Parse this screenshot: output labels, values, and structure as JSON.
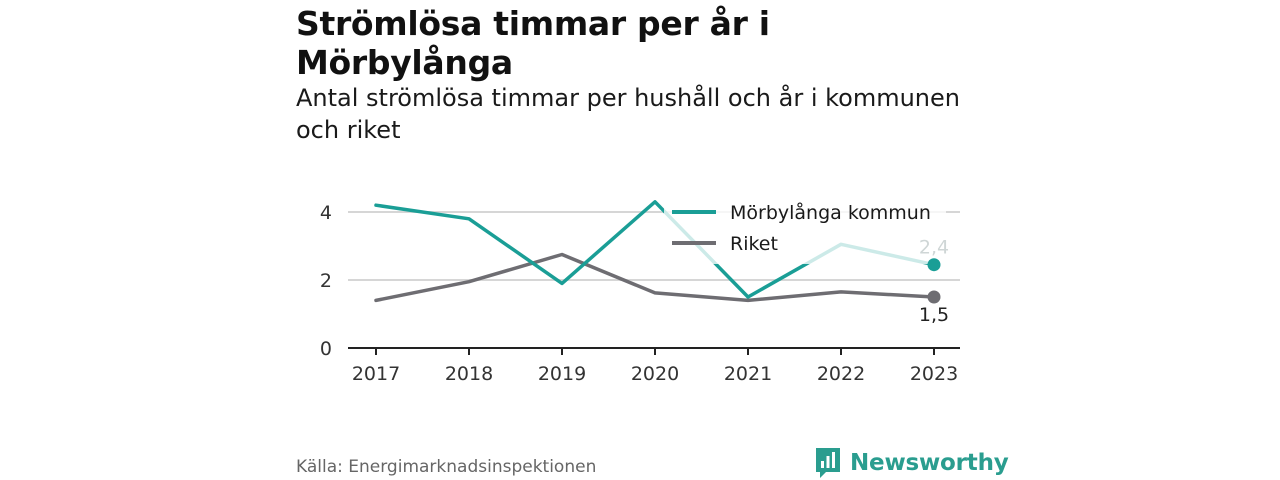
{
  "title": "Strömlösa timmar per år i Mörbylånga",
  "subtitle": "Antal strömlösa timmar per hushåll och år i kommunen och riket",
  "source": "Källa: Energimarknadsinspektionen",
  "brand": {
    "name": "Newsworthy",
    "icon": "bar-chart-logo-icon",
    "color": "#2a9d8f"
  },
  "chart_data": {
    "type": "line",
    "x": [
      "2017",
      "2018",
      "2019",
      "2020",
      "2021",
      "2022",
      "2023"
    ],
    "yticks": [
      "0",
      "2",
      "4"
    ],
    "ylim": [
      0,
      4.8
    ],
    "grid": true,
    "legend_position": "top-right",
    "series": [
      {
        "name": "Mörbylånga kommun",
        "color": "#1a9e96",
        "values": [
          4.2,
          3.8,
          1.9,
          4.3,
          1.5,
          3.05,
          2.45
        ],
        "end_label": "2,4"
      },
      {
        "name": "Riket",
        "color": "#6e6d72",
        "values": [
          1.4,
          1.95,
          2.75,
          1.62,
          1.4,
          1.65,
          1.5
        ],
        "end_label": "1,5"
      }
    ]
  }
}
